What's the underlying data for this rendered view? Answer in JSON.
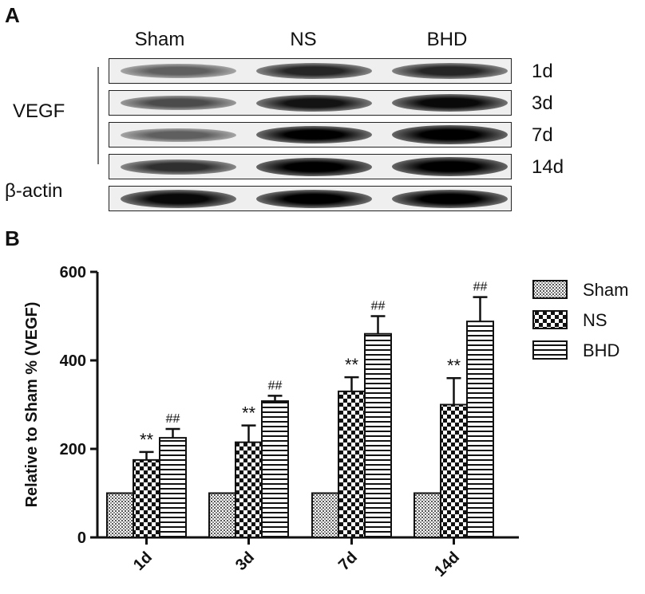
{
  "panels": {
    "a_label": "A",
    "b_label": "B"
  },
  "blot": {
    "columns": [
      "Sham",
      "NS",
      "BHD"
    ],
    "rows": [
      "1d",
      "3d",
      "7d",
      "14d"
    ],
    "vegf_label": "VEGF",
    "beta_actin_label": "β-actin"
  },
  "chart_data": {
    "type": "bar",
    "categories": [
      "1d",
      "3d",
      "7d",
      "14d"
    ],
    "ylabel": "Relative to Sham % (VEGF)",
    "xlabel": "",
    "ylim": [
      0,
      600
    ],
    "yticks": [
      0,
      200,
      400,
      600
    ],
    "legend_position": "top-right",
    "series": [
      {
        "name": "Sham",
        "pattern": "dots",
        "values": [
          100,
          100,
          100,
          100
        ],
        "errors": [
          0,
          0,
          0,
          0
        ],
        "annotations": [
          "",
          "",
          "",
          ""
        ]
      },
      {
        "name": "NS",
        "pattern": "checker",
        "values": [
          175,
          215,
          330,
          300
        ],
        "errors": [
          18,
          38,
          32,
          60
        ],
        "annotations": [
          "**",
          "**",
          "**",
          "**"
        ]
      },
      {
        "name": "BHD",
        "pattern": "hlines",
        "values": [
          225,
          308,
          460,
          488
        ],
        "errors": [
          20,
          12,
          40,
          55
        ],
        "annotations": [
          "##",
          "##",
          "##",
          "##"
        ]
      }
    ]
  }
}
